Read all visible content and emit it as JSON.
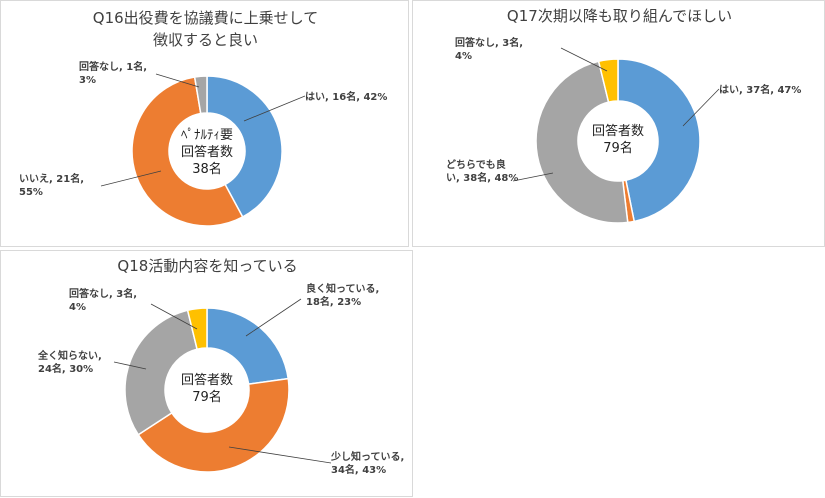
{
  "colors": {
    "blue": "#5b9bd5",
    "orange": "#ed7d31",
    "gray": "#a5a5a5",
    "yellow": "#ffc000",
    "leader": "#404040"
  },
  "chart_data": [
    {
      "type": "pie",
      "title": [
        "Q16出役費を協議費に上乗せして",
        "徴収すると良い"
      ],
      "center_text": [
        "ﾍﾟﾅﾙﾃｨ要",
        "回答者数",
        "38名"
      ],
      "slices": [
        {
          "name": "はい",
          "value": 16,
          "percent": 42,
          "color": "blue",
          "label": [
            "はい, 16名, 42%"
          ]
        },
        {
          "name": "いいえ",
          "value": 21,
          "percent": 55,
          "color": "orange",
          "label": [
            "いいえ, 21名,",
            "55%"
          ]
        },
        {
          "name": "回答なし",
          "value": 1,
          "percent": 3,
          "color": "gray",
          "label": [
            "回答なし, 1名,",
            "3%"
          ]
        }
      ]
    },
    {
      "type": "pie",
      "title": [
        "Q17次期以降も取り組んでほしい"
      ],
      "center_text": [
        "回答者数",
        "79名"
      ],
      "slices": [
        {
          "name": "はい",
          "value": 37,
          "percent": 47,
          "color": "blue",
          "label": [
            "はい, 37名, 47%"
          ]
        },
        {
          "name": "",
          "value": 1,
          "percent": 1,
          "color": "orange",
          "label": []
        },
        {
          "name": "どちらでも良い",
          "value": 38,
          "percent": 48,
          "color": "gray",
          "label": [
            "どちらでも良",
            "い, 38名, 48%"
          ]
        },
        {
          "name": "回答なし",
          "value": 3,
          "percent": 4,
          "color": "yellow",
          "label": [
            "回答なし, 3名,",
            "4%"
          ]
        }
      ]
    },
    {
      "type": "pie",
      "title": [
        "Q18活動内容を知っている"
      ],
      "center_text": [
        "回答者数",
        "79名"
      ],
      "slices": [
        {
          "name": "良く知っている",
          "value": 18,
          "percent": 23,
          "color": "blue",
          "label": [
            "良く知っている,",
            "18名, 23%"
          ]
        },
        {
          "name": "少し知っている",
          "value": 34,
          "percent": 43,
          "color": "orange",
          "label": [
            "少し知っている,",
            "34名, 43%"
          ]
        },
        {
          "name": "全く知らない",
          "value": 24,
          "percent": 30,
          "color": "gray",
          "label": [
            "全く知らない,",
            "24名, 30%"
          ]
        },
        {
          "name": "回答なし",
          "value": 3,
          "percent": 4,
          "color": "yellow",
          "label": [
            "回答なし, 3名,",
            "4%"
          ]
        }
      ]
    }
  ]
}
